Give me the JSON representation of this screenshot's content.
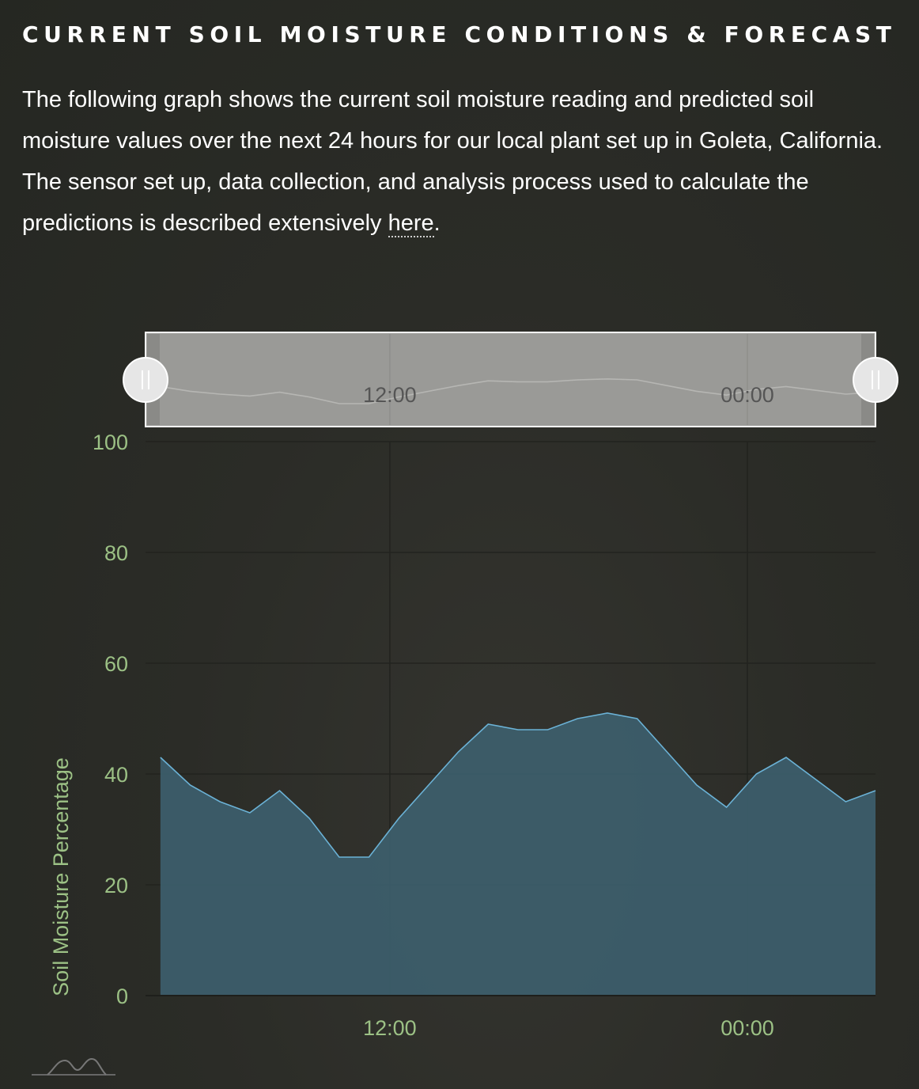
{
  "header": {
    "title": "CURRENT SOIL MOISTURE CONDITIONS & FORECAST"
  },
  "intro": {
    "text_before_link": "The following graph shows the current soil moisture reading and predicted soil moisture values over the next 24 hours for our local plant set up in Goleta, California. The sensor set up, data collection, and analysis process used to calculate the predictions is described extensively ",
    "link_text": "here",
    "text_after_link": "."
  },
  "colors": {
    "accent_label": "#9cc185",
    "series_line": "#6bb2d6",
    "series_fill": "#3d5e6c",
    "navigator_bg": "#9a9a97",
    "handle": "#e6e6e6"
  },
  "chart_data": {
    "type": "area",
    "title": "",
    "xlabel": "",
    "ylabel": "Soil Moisture Percentage",
    "ylim": [
      0,
      100
    ],
    "yticks": [
      0,
      20,
      40,
      60,
      80,
      100
    ],
    "xlim": [
      3.8,
      28.3
    ],
    "xticks": [
      {
        "value": 12,
        "label": "12:00"
      },
      {
        "value": 24,
        "label": "00:00"
      }
    ],
    "grid": true,
    "legend": "none",
    "navigator": true,
    "series": [
      {
        "x": [
          4.3,
          5.3,
          6.3,
          7.3,
          8.3,
          9.3,
          10.3,
          11.3,
          12.3,
          13.3,
          14.3,
          15.3,
          16.3,
          17.3,
          18.3,
          19.3,
          20.3,
          21.3,
          22.3,
          23.3,
          24.3,
          25.3,
          26.3,
          27.3,
          28.3
        ],
        "values": [
          43,
          38,
          35,
          33,
          37,
          32,
          25,
          25,
          32,
          38,
          44,
          49,
          48,
          48,
          50,
          51,
          50,
          44,
          38,
          34,
          40,
          43,
          39,
          35,
          37
        ]
      }
    ]
  },
  "footer": {
    "logo": "mountain-logo-icon"
  }
}
